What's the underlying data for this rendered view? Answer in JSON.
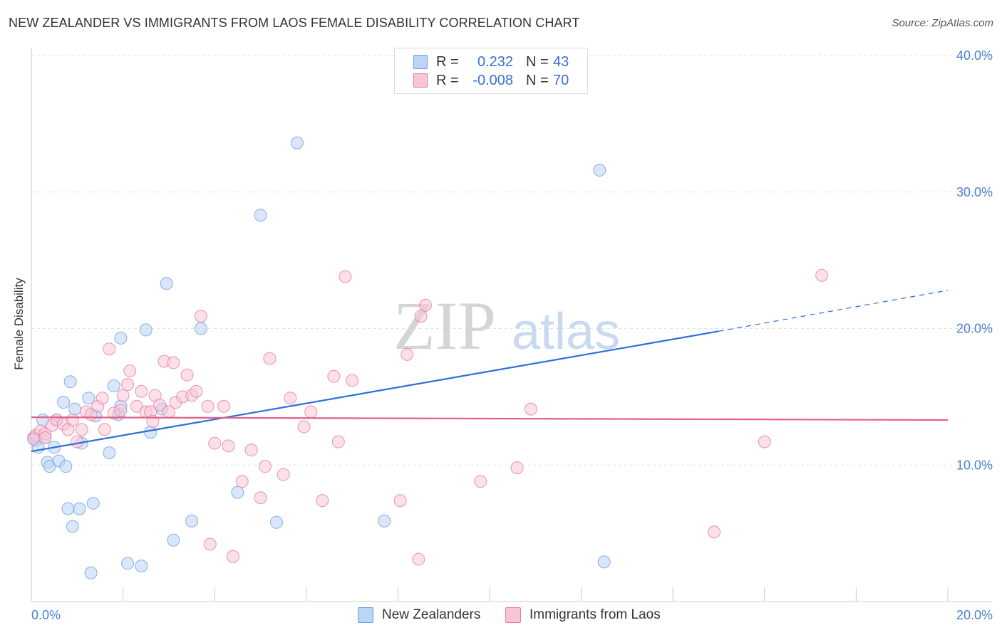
{
  "title": "NEW ZEALANDER VS IMMIGRANTS FROM LAOS FEMALE DISABILITY CORRELATION CHART",
  "source": "Source: ZipAtlas.com",
  "watermark": {
    "zip": "ZIP",
    "atlas": "atlas"
  },
  "colors": {
    "blue": "#6a9fe0",
    "blue_fill": "#bcd4f5",
    "pink": "#e87aa0",
    "pink_fill": "#f7c6d6",
    "blue_line": "#2b6fd6",
    "pink_line": "#e0608a",
    "tick_text": "#4a7fd4"
  },
  "legend": {
    "rows": [
      {
        "r_label": "R =",
        "r_value": "0.232",
        "n_label": "N =",
        "n_value": "43"
      },
      {
        "r_label": "R =",
        "r_value": "-0.008",
        "n_label": "N =",
        "n_value": "70"
      }
    ]
  },
  "bottom_legend": {
    "series_a": "New Zealanders",
    "series_b": "Immigrants from Laos"
  },
  "chart_data": {
    "type": "scatter",
    "title": "NEW ZEALANDER VS IMMIGRANTS FROM LAOS FEMALE DISABILITY CORRELATION CHART",
    "xlabel": "",
    "ylabel": "Female Disability",
    "xlim": [
      0,
      20
    ],
    "ylim": [
      0,
      40
    ],
    "x_tick_labels": [
      "0.0%",
      "20.0%"
    ],
    "y_ticks": [
      10,
      20,
      30,
      40
    ],
    "y_tick_labels": [
      "10.0%",
      "20.0%",
      "30.0%",
      "40.0%"
    ],
    "grid": true,
    "series": [
      {
        "name": "New Zealanders",
        "trend": {
          "x0": 0,
          "y0": 11.0,
          "x1": 15.0,
          "y1": 19.8,
          "dash_to_x": 20,
          "dash_to_y": 22.8
        },
        "points": [
          [
            0.1,
            11.8
          ],
          [
            0.15,
            11.3
          ],
          [
            0.25,
            13.3
          ],
          [
            0.3,
            12.0
          ],
          [
            0.35,
            10.2
          ],
          [
            0.4,
            9.9
          ],
          [
            0.5,
            11.3
          ],
          [
            0.55,
            13.3
          ],
          [
            0.6,
            10.3
          ],
          [
            0.7,
            14.6
          ],
          [
            0.75,
            9.9
          ],
          [
            0.8,
            6.8
          ],
          [
            0.85,
            16.1
          ],
          [
            0.9,
            5.5
          ],
          [
            0.95,
            14.1
          ],
          [
            1.05,
            6.8
          ],
          [
            1.1,
            11.6
          ],
          [
            1.25,
            14.9
          ],
          [
            1.35,
            7.2
          ],
          [
            1.4,
            13.6
          ],
          [
            1.7,
            10.9
          ],
          [
            1.8,
            15.8
          ],
          [
            1.9,
            13.7
          ],
          [
            1.95,
            19.3
          ],
          [
            1.95,
            14.3
          ],
          [
            2.1,
            2.8
          ],
          [
            2.4,
            2.6
          ],
          [
            2.5,
            19.9
          ],
          [
            2.6,
            12.4
          ],
          [
            2.85,
            14.1
          ],
          [
            2.95,
            23.3
          ],
          [
            3.1,
            4.5
          ],
          [
            3.5,
            5.9
          ],
          [
            3.7,
            20.0
          ],
          [
            4.5,
            8.0
          ],
          [
            5.0,
            28.3
          ],
          [
            5.35,
            5.8
          ],
          [
            5.8,
            33.6
          ],
          [
            7.7,
            5.9
          ],
          [
            12.4,
            31.6
          ],
          [
            12.5,
            2.9
          ],
          [
            1.3,
            2.1
          ],
          [
            0.05,
            12.0
          ]
        ]
      },
      {
        "name": "Immigrants from Laos",
        "trend": {
          "x0": 0,
          "y0": 13.5,
          "x1": 20,
          "y1": 13.3
        },
        "points": [
          [
            0.1,
            12.2
          ],
          [
            0.2,
            12.5
          ],
          [
            0.3,
            12.3
          ],
          [
            0.45,
            12.9
          ],
          [
            0.55,
            13.3
          ],
          [
            0.7,
            13.0
          ],
          [
            0.8,
            12.6
          ],
          [
            0.9,
            13.3
          ],
          [
            1.0,
            11.7
          ],
          [
            1.1,
            12.6
          ],
          [
            1.2,
            13.9
          ],
          [
            1.3,
            13.7
          ],
          [
            1.45,
            14.3
          ],
          [
            1.55,
            14.9
          ],
          [
            1.6,
            12.6
          ],
          [
            1.7,
            18.5
          ],
          [
            1.8,
            13.8
          ],
          [
            1.95,
            14.0
          ],
          [
            2.0,
            15.1
          ],
          [
            2.1,
            15.9
          ],
          [
            2.15,
            16.9
          ],
          [
            2.3,
            14.3
          ],
          [
            2.4,
            15.4
          ],
          [
            2.5,
            13.9
          ],
          [
            2.6,
            13.9
          ],
          [
            2.65,
            13.2
          ],
          [
            2.7,
            15.1
          ],
          [
            2.8,
            14.4
          ],
          [
            2.9,
            17.6
          ],
          [
            3.0,
            13.9
          ],
          [
            3.1,
            17.5
          ],
          [
            3.15,
            14.6
          ],
          [
            3.3,
            15.0
          ],
          [
            3.4,
            16.6
          ],
          [
            3.5,
            15.1
          ],
          [
            3.6,
            15.4
          ],
          [
            3.7,
            20.9
          ],
          [
            3.85,
            14.3
          ],
          [
            3.9,
            4.2
          ],
          [
            4.0,
            11.6
          ],
          [
            4.2,
            14.3
          ],
          [
            4.3,
            11.4
          ],
          [
            4.4,
            3.3
          ],
          [
            4.6,
            8.8
          ],
          [
            4.8,
            11.1
          ],
          [
            5.0,
            7.6
          ],
          [
            5.1,
            9.9
          ],
          [
            5.2,
            17.8
          ],
          [
            5.5,
            9.3
          ],
          [
            5.65,
            14.9
          ],
          [
            5.95,
            12.8
          ],
          [
            6.1,
            13.9
          ],
          [
            6.35,
            7.4
          ],
          [
            6.6,
            16.5
          ],
          [
            6.7,
            11.7
          ],
          [
            6.85,
            23.8
          ],
          [
            7.0,
            16.2
          ],
          [
            8.05,
            7.4
          ],
          [
            8.2,
            18.1
          ],
          [
            8.45,
            3.1
          ],
          [
            8.5,
            20.9
          ],
          [
            8.6,
            21.7
          ],
          [
            9.8,
            8.8
          ],
          [
            10.6,
            9.8
          ],
          [
            10.9,
            14.1
          ],
          [
            14.9,
            5.1
          ],
          [
            16.0,
            11.7
          ],
          [
            17.25,
            23.9
          ],
          [
            0.05,
            11.9
          ],
          [
            0.3,
            12.0
          ]
        ]
      }
    ]
  }
}
